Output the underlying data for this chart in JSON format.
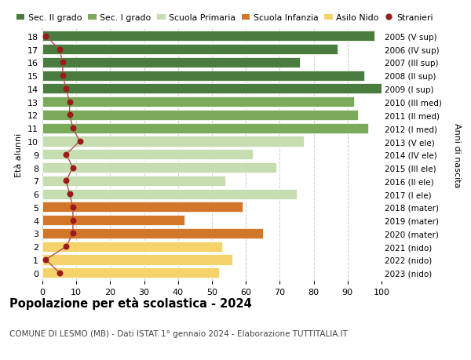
{
  "ages": [
    18,
    17,
    16,
    15,
    14,
    13,
    12,
    11,
    10,
    9,
    8,
    7,
    6,
    5,
    4,
    3,
    2,
    1,
    0
  ],
  "right_labels": [
    "2005 (V sup)",
    "2006 (IV sup)",
    "2007 (III sup)",
    "2008 (II sup)",
    "2009 (I sup)",
    "2010 (III med)",
    "2011 (II med)",
    "2012 (I med)",
    "2013 (V ele)",
    "2014 (IV ele)",
    "2015 (III ele)",
    "2016 (II ele)",
    "2017 (I ele)",
    "2018 (mater)",
    "2019 (mater)",
    "2020 (mater)",
    "2021 (nido)",
    "2022 (nido)",
    "2023 (nido)"
  ],
  "bar_values": [
    98,
    87,
    76,
    95,
    100,
    92,
    93,
    96,
    77,
    62,
    69,
    54,
    75,
    59,
    42,
    65,
    53,
    56,
    52
  ],
  "stranieri_values": [
    1,
    5,
    6,
    6,
    7,
    8,
    8,
    9,
    11,
    7,
    9,
    7,
    8,
    9,
    9,
    9,
    7,
    1,
    5
  ],
  "color_by_age": [
    "#4a7c3f",
    "#4a7c3f",
    "#4a7c3f",
    "#4a7c3f",
    "#4a7c3f",
    "#7aaa5a",
    "#7aaa5a",
    "#7aaa5a",
    "#c5ddb0",
    "#c5ddb0",
    "#c5ddb0",
    "#c5ddb0",
    "#c5ddb0",
    "#d2762a",
    "#d2762a",
    "#d2762a",
    "#f5d26a",
    "#f5d26a",
    "#f5d26a"
  ],
  "stranieri_color": "#9b1b1b",
  "stranieri_line_color": "#b05050",
  "legend_labels": [
    "Sec. II grado",
    "Sec. I grado",
    "Scuola Primaria",
    "Scuola Infanzia",
    "Asilo Nido",
    "Stranieri"
  ],
  "legend_colors": [
    "#4a7c3f",
    "#7aaa5a",
    "#c5ddb0",
    "#d2762a",
    "#f5d26a",
    "#9b1b1b"
  ],
  "ylabel_left": "Età alunni",
  "ylabel_right": "Anni di nascita",
  "title": "Popolazione per età scolastica - 2024",
  "subtitle": "COMUNE DI LESMO (MB) - Dati ISTAT 1° gennaio 2024 - Elaborazione TUTTITALIA.IT",
  "xlim": [
    0,
    100
  ],
  "xticks": [
    0,
    10,
    20,
    30,
    40,
    50,
    60,
    70,
    80,
    90,
    100
  ],
  "background_color": "#ffffff",
  "grid_color": "#cccccc",
  "bar_height": 0.78
}
